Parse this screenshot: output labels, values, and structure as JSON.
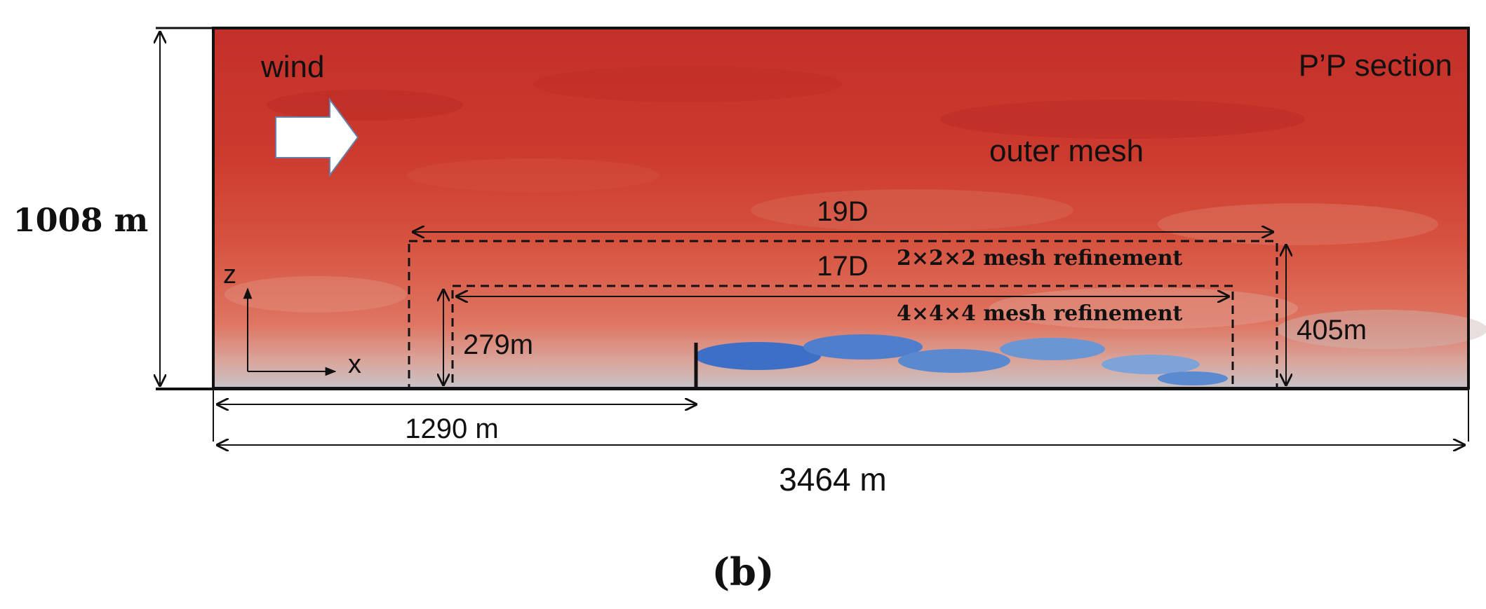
{
  "figure": {
    "panel_label": "(b)",
    "section_label": "P’P section",
    "wind_label": "wind",
    "outer_mesh_label": "outer mesh",
    "axis_z_label": "z",
    "axis_x_label": "x"
  },
  "dimensions": {
    "domain_height": "1008 m",
    "domain_length": "3464 m",
    "turbine_distance": "1290 m",
    "outer_refinement_length": "19D",
    "outer_refinement_height": "405m",
    "outer_refinement_label": "2×2×2 mesh refinement",
    "inner_refinement_length": "17D",
    "inner_refinement_height": "279m",
    "inner_refinement_label": "4×4×4 mesh refinement"
  },
  "colors": {
    "field_high": "#c8322a",
    "field_mid": "#d9604a",
    "field_low": "#5b88d0",
    "near_ground": "#c9b2ad",
    "line": "#111111"
  }
}
